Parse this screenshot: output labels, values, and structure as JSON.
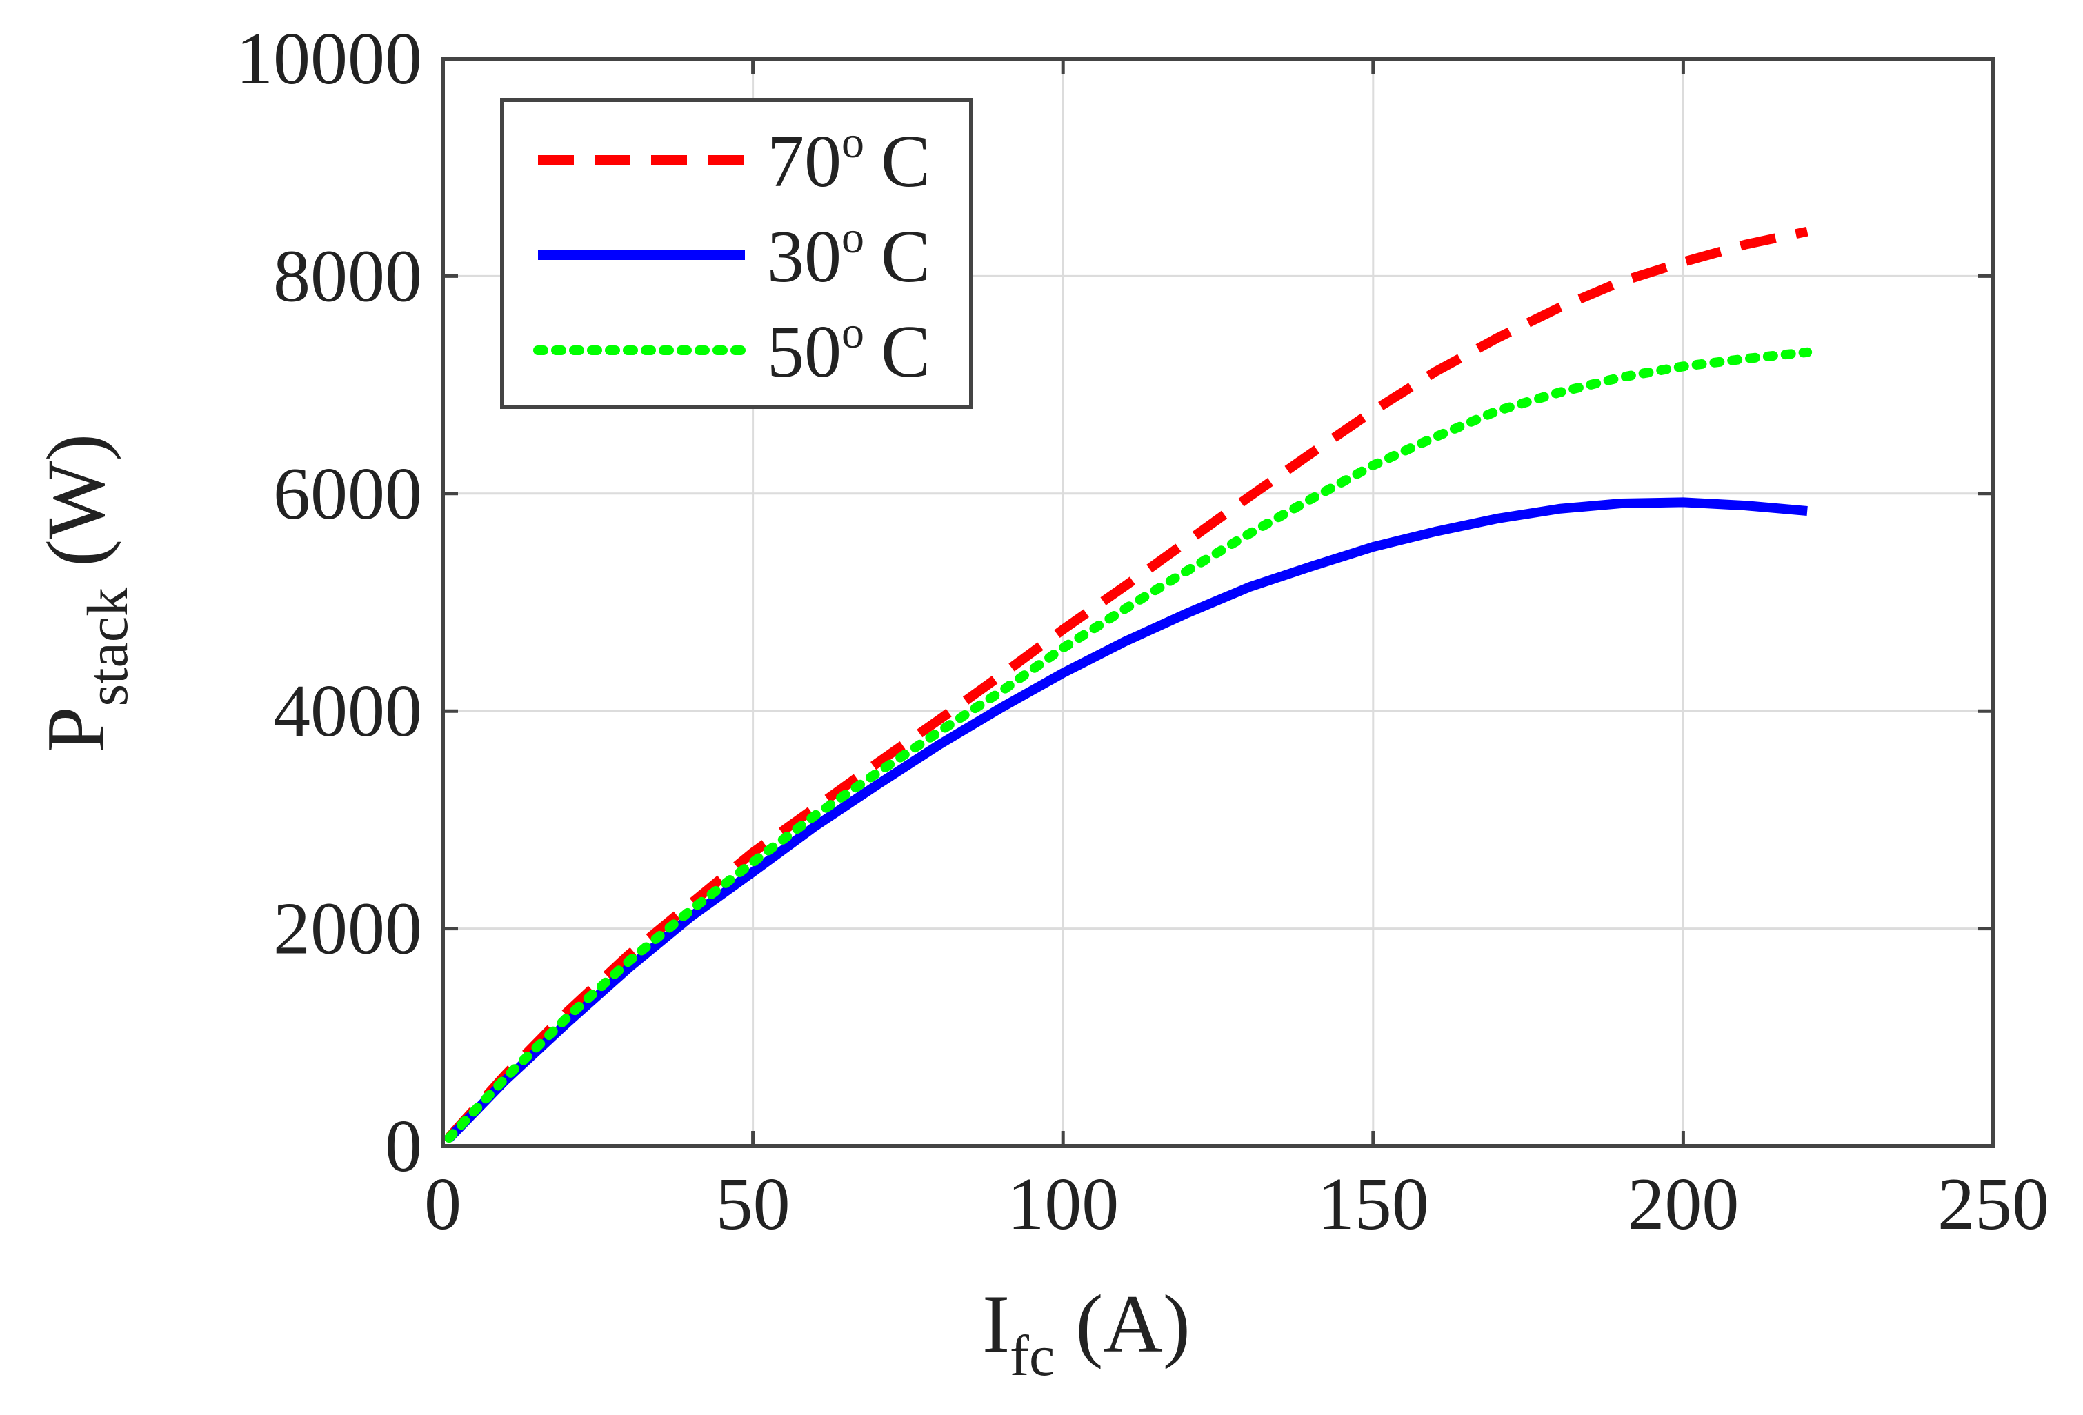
{
  "chart_data": {
    "type": "line",
    "title": "",
    "xlabel": {
      "main": "I",
      "sub": "fc",
      "unit": "(A)"
    },
    "ylabel": {
      "main": "P",
      "sub": "stack",
      "unit": "(W)"
    },
    "xlim": [
      0,
      250
    ],
    "ylim": [
      0,
      10000
    ],
    "xticks": [
      0,
      50,
      100,
      150,
      200,
      250
    ],
    "yticks": [
      0,
      2000,
      4000,
      6000,
      8000,
      10000
    ],
    "grid": true,
    "legend_position": "top-left",
    "series": [
      {
        "name": "70",
        "legend_sup": "o",
        "legend_unit": "C",
        "color": "#ff0000",
        "style": "dashed",
        "x": [
          1,
          10,
          20,
          30,
          40,
          50,
          60,
          70,
          80,
          90,
          100,
          110,
          120,
          130,
          140,
          150,
          160,
          170,
          180,
          190,
          200,
          210,
          220
        ],
        "y": [
          80,
          650,
          1230,
          1760,
          2230,
          2700,
          3110,
          3520,
          3920,
          4330,
          4750,
          5150,
          5560,
          5970,
          6370,
          6760,
          7120,
          7430,
          7710,
          7950,
          8130,
          8290,
          8410
        ]
      },
      {
        "name": "30",
        "legend_sup": "o",
        "legend_unit": "C",
        "color": "#0000ff",
        "style": "solid",
        "x": [
          1,
          10,
          20,
          30,
          40,
          50,
          60,
          70,
          80,
          90,
          100,
          110,
          120,
          130,
          140,
          150,
          160,
          170,
          180,
          190,
          200,
          210,
          220
        ],
        "y": [
          70,
          600,
          1130,
          1640,
          2110,
          2520,
          2940,
          3320,
          3690,
          4030,
          4350,
          4640,
          4900,
          5140,
          5330,
          5510,
          5650,
          5770,
          5860,
          5910,
          5920,
          5890,
          5840
        ]
      },
      {
        "name": "50",
        "legend_sup": "o",
        "legend_unit": "C",
        "color": "#00ff00",
        "style": "dotted",
        "x": [
          1,
          10,
          20,
          30,
          40,
          50,
          60,
          70,
          80,
          90,
          100,
          110,
          120,
          130,
          140,
          150,
          160,
          170,
          180,
          190,
          200,
          210,
          220
        ],
        "y": [
          75,
          620,
          1180,
          1700,
          2170,
          2610,
          3040,
          3430,
          3810,
          4180,
          4580,
          4940,
          5290,
          5630,
          5950,
          6260,
          6520,
          6760,
          6930,
          7070,
          7170,
          7240,
          7300
        ]
      }
    ]
  }
}
